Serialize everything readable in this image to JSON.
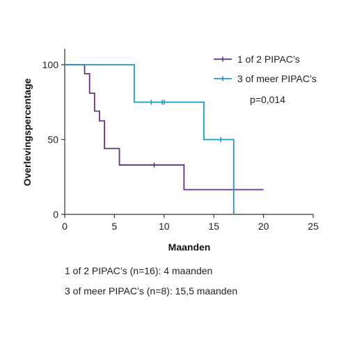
{
  "chart_data": {
    "type": "line",
    "title": "",
    "xlabel": "Maanden",
    "ylabel": "Overlevingspercentage",
    "xlim": [
      0,
      25
    ],
    "ylim": [
      0,
      100
    ],
    "xticks": [
      0,
      5,
      10,
      15,
      20,
      25
    ],
    "yticks": [
      0,
      50,
      100
    ],
    "grid": false,
    "legend_position": "top-right",
    "annotation": "p=0,014",
    "series": [
      {
        "name": "1 of 2 PIPAC’s",
        "color": "#6a2c91",
        "step_points": [
          [
            0,
            100
          ],
          [
            2,
            100
          ],
          [
            2,
            94
          ],
          [
            2.5,
            94
          ],
          [
            2.5,
            81
          ],
          [
            3,
            81
          ],
          [
            3,
            69
          ],
          [
            3.5,
            69
          ],
          [
            3.5,
            62.5
          ],
          [
            4,
            62.5
          ],
          [
            4,
            44
          ],
          [
            5.5,
            44
          ],
          [
            5.5,
            33
          ],
          [
            12,
            33
          ],
          [
            12,
            16.5
          ],
          [
            20,
            16.5
          ]
        ],
        "censored": [
          [
            9,
            33
          ]
        ]
      },
      {
        "name": "3 of meer PIPAC’s",
        "color": "#1a9ad6",
        "step_points": [
          [
            0,
            100
          ],
          [
            7,
            100
          ],
          [
            7,
            75
          ],
          [
            14,
            75
          ],
          [
            14,
            50
          ],
          [
            17,
            50
          ],
          [
            17,
            0
          ]
        ],
        "censored": [
          [
            8.7,
            75
          ],
          [
            9.8,
            75
          ],
          [
            10,
            75
          ],
          [
            15.7,
            50
          ]
        ]
      }
    ]
  },
  "captions": [
    "1 of 2 PIPAC’s (n=16): 4 maanden",
    "3 of meer PIPAC’s (n=8): 15,5 maanden"
  ]
}
